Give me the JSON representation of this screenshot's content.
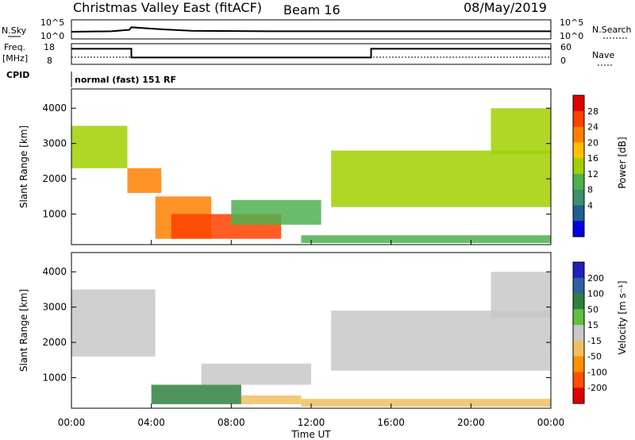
{
  "header": {
    "title": "Christmas Valley East (fitACF)",
    "beam": "Beam 16",
    "date": "08/May/2019"
  },
  "noise_panel": {
    "left_label": "N.Sky",
    "right_label": "N.Search",
    "y_ticks": [
      "10^5",
      "10^0"
    ],
    "y_ticks_right": [
      "10^5",
      "10^0"
    ]
  },
  "freq_panel": {
    "left_label_1": "Freq.",
    "left_label_2": "[MHz]",
    "left_ticks": [
      "18",
      "8"
    ],
    "right_label": "Nave",
    "right_ticks": [
      "60",
      "0"
    ]
  },
  "cpid": {
    "label": "CPID",
    "text": "normal (fast) 151 RF"
  },
  "power_panel": {
    "ylabel": "Slant Range [km]",
    "cb_label": "Power [dB]",
    "cb_ticks": [
      "28",
      "24",
      "20",
      "16",
      "12",
      "8",
      "4"
    ],
    "cb_colors": [
      "#e00000",
      "#ff4000",
      "#ff8000",
      "#ffc000",
      "#a0d000",
      "#50b050",
      "#3c9070",
      "#1f5f8f",
      "#0000e0"
    ]
  },
  "velocity_panel": {
    "ylabel": "Slant Range [km]",
    "cb_label": "Velocity [m s⁻¹]",
    "cb_ticks": [
      "200",
      "100",
      "50",
      "15",
      "-15",
      "-50",
      "-100",
      "-200"
    ],
    "cb_colors": [
      "#2020c0",
      "#3060a0",
      "#308040",
      "#60c040",
      "#c8c8c8",
      "#f0c060",
      "#ff9000",
      "#ff5000",
      "#e00000"
    ]
  },
  "x_axis": {
    "ticks": [
      "00:00",
      "04:00",
      "08:00",
      "12:00",
      "16:00",
      "20:00",
      "00:00"
    ],
    "title": "Time UT"
  },
  "chart_data": [
    {
      "type": "line",
      "title": "N.Sky / N.Search",
      "x": [
        0,
        2,
        2.9,
        3.0,
        4.5,
        6,
        10,
        12,
        16,
        20,
        24
      ],
      "series": [
        {
          "name": "N.Sky",
          "values": [
            1.1,
            1.2,
            1.5,
            2.0,
            1.6,
            1.3,
            1.2,
            1.2,
            1.2,
            1.2,
            1.2
          ]
        }
      ]
    },
    {
      "type": "line",
      "title": "Freq",
      "x": [
        0,
        3.0,
        3.0,
        15.0,
        15.0,
        24
      ],
      "series": [
        {
          "name": "Freq",
          "values": [
            16,
            16,
            11,
            11,
            16,
            16
          ]
        }
      ],
      "ylim": [
        8,
        18
      ]
    },
    {
      "type": "heatmap",
      "title": "Power [dB]",
      "xlabel": "Time UT",
      "ylabel": "Slant Range [km]",
      "xlim": [
        0,
        24
      ],
      "ylim": [
        180,
        4500
      ],
      "zlim": [
        0,
        30
      ],
      "regions": [
        {
          "t0": 0.0,
          "t1": 2.8,
          "r0": 2300,
          "r1": 3500,
          "power": 16
        },
        {
          "t0": 2.8,
          "t1": 4.5,
          "r0": 1600,
          "r1": 2300,
          "power": 22
        },
        {
          "t0": 4.2,
          "t1": 7.0,
          "r0": 300,
          "r1": 1500,
          "power": 24
        },
        {
          "t0": 5.0,
          "t1": 10.5,
          "r0": 300,
          "r1": 1000,
          "power": 26
        },
        {
          "t0": 8.0,
          "t1": 12.5,
          "r0": 700,
          "r1": 1400,
          "power": 12
        },
        {
          "t0": 11.5,
          "t1": 24.0,
          "r0": 180,
          "r1": 400,
          "power": 10
        },
        {
          "t0": 13.0,
          "t1": 24.0,
          "r0": 1200,
          "r1": 2800,
          "power": 14
        },
        {
          "t0": 21.0,
          "t1": 24.0,
          "r0": 2700,
          "r1": 4000,
          "power": 16
        }
      ]
    },
    {
      "type": "heatmap",
      "title": "Velocity [m s⁻¹]",
      "xlabel": "Time UT",
      "ylabel": "Slant Range [km]",
      "xlim": [
        0,
        24
      ],
      "ylim": [
        180,
        4500
      ],
      "zlim": [
        -250,
        250
      ],
      "regions": [
        {
          "t0": 0.0,
          "t1": 4.2,
          "r0": 1600,
          "r1": 3500,
          "velocity": 0
        },
        {
          "t0": 4.0,
          "t1": 8.5,
          "r0": 250,
          "r1": 800,
          "velocity": 40
        },
        {
          "t0": 6.5,
          "t1": 12.0,
          "r0": 800,
          "r1": 1400,
          "velocity": 0
        },
        {
          "t0": 8.5,
          "t1": 11.5,
          "r0": 250,
          "r1": 500,
          "velocity": -40
        },
        {
          "t0": 11.5,
          "t1": 24.0,
          "r0": 180,
          "r1": 400,
          "velocity": -30
        },
        {
          "t0": 13.0,
          "t1": 24.0,
          "r0": 1200,
          "r1": 2900,
          "velocity": 0
        },
        {
          "t0": 21.0,
          "t1": 24.0,
          "r0": 2700,
          "r1": 4000,
          "velocity": 0
        }
      ]
    }
  ]
}
